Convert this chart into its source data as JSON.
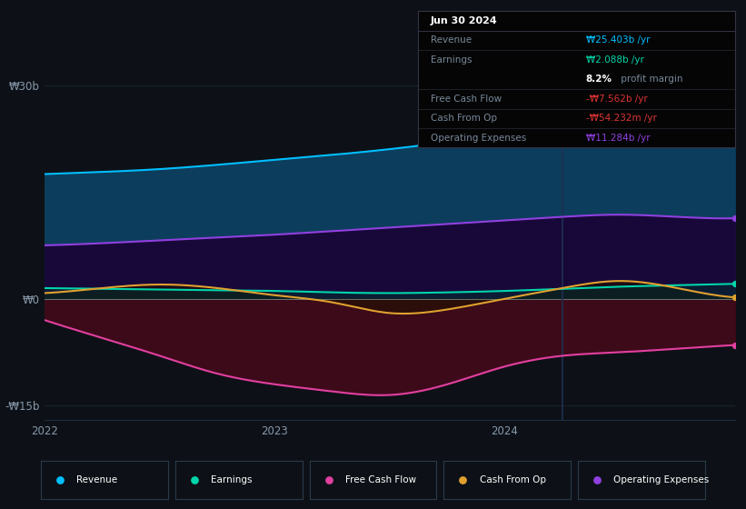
{
  "bg_color": "#0d1117",
  "plot_bg_color": "#0d1117",
  "ylim": [
    -17,
    33
  ],
  "yticks": [
    -15,
    0,
    30
  ],
  "ytick_labels": [
    "-₩15b",
    "₩0",
    "₩30b"
  ],
  "x": [
    0,
    3,
    6,
    9,
    12,
    15,
    18,
    21,
    24,
    27,
    30,
    33,
    36
  ],
  "revenue": [
    17.5,
    17.8,
    18.2,
    18.8,
    19.5,
    20.2,
    21.0,
    22.0,
    23.2,
    24.5,
    25.0,
    25.4,
    26.0
  ],
  "earnings": [
    1.5,
    1.4,
    1.3,
    1.2,
    1.1,
    0.9,
    0.8,
    0.9,
    1.1,
    1.4,
    1.7,
    1.9,
    2.1
  ],
  "free_cash_flow": [
    -3.0,
    -5.5,
    -8.0,
    -10.5,
    -12.0,
    -13.0,
    -13.5,
    -12.0,
    -9.5,
    -8.0,
    -7.5,
    -7.0,
    -6.5
  ],
  "cash_from_op": [
    0.8,
    1.5,
    2.0,
    1.5,
    0.5,
    -0.5,
    -2.0,
    -1.5,
    0.0,
    1.5,
    2.5,
    1.5,
    0.2
  ],
  "op_expenses": [
    7.5,
    7.8,
    8.2,
    8.6,
    9.0,
    9.5,
    10.0,
    10.5,
    11.0,
    11.5,
    11.8,
    11.5,
    11.3
  ],
  "revenue_color": "#00bfff",
  "revenue_fill": "#0d3d5c",
  "earnings_color": "#00d4aa",
  "earnings_fill": "#003030",
  "free_cash_flow_color": "#e040a0",
  "free_cash_flow_fill": "#3d0a1a",
  "cash_from_op_color": "#e0a030",
  "cash_from_op_fill": "#201000",
  "op_expenses_color": "#9040e0",
  "op_expenses_fill": "#18083a",
  "grid_color": "#1e2d3d",
  "zero_line_color": "#aaaaaa",
  "text_color": "#8899aa",
  "vline_color": "#1e3050",
  "vline_x": 27,
  "info_box": {
    "date": "Jun 30 2024",
    "revenue_label": "Revenue",
    "revenue_value": "₩25.403b /yr",
    "revenue_value_color": "#00bfff",
    "earnings_label": "Earnings",
    "earnings_value": "₩2.088b /yr",
    "earnings_value_color": "#00d4aa",
    "margin_text": "8.2%",
    "margin_label": " profit margin",
    "fcf_label": "Free Cash Flow",
    "fcf_value": "-₩7.562b /yr",
    "fcf_value_color": "#dd3333",
    "cfop_label": "Cash From Op",
    "cfop_value": "-₩54.232m /yr",
    "cfop_value_color": "#dd3333",
    "opex_label": "Operating Expenses",
    "opex_value": "₩11.284b /yr",
    "opex_value_color": "#9040e0",
    "bg_color": "#050505",
    "border_color": "#333344",
    "label_color": "#778899",
    "title_color": "#ffffff"
  },
  "legend": [
    {
      "label": "Revenue",
      "color": "#00bfff"
    },
    {
      "label": "Earnings",
      "color": "#00d4aa"
    },
    {
      "label": "Free Cash Flow",
      "color": "#e040a0"
    },
    {
      "label": "Cash From Op",
      "color": "#e0a030"
    },
    {
      "label": "Operating Expenses",
      "color": "#9040e0"
    }
  ]
}
